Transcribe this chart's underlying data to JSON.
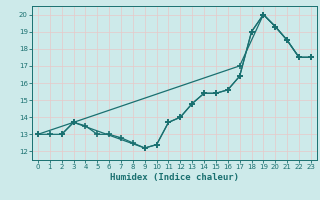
{
  "xlabel": "Humidex (Indice chaleur)",
  "xlim": [
    -0.5,
    23.5
  ],
  "ylim": [
    11.5,
    20.5
  ],
  "xticks": [
    0,
    1,
    2,
    3,
    4,
    5,
    6,
    7,
    8,
    9,
    10,
    11,
    12,
    13,
    14,
    15,
    16,
    17,
    18,
    19,
    20,
    21,
    22,
    23
  ],
  "yticks": [
    12,
    13,
    14,
    15,
    16,
    17,
    18,
    19,
    20
  ],
  "background_color": "#cdeaea",
  "grid_color": "#b0d8d8",
  "line_color": "#1a7070",
  "line1_x": [
    0,
    1,
    2,
    3,
    4,
    5,
    6,
    7,
    8,
    9,
    10,
    11,
    12,
    13,
    14,
    15,
    16,
    17,
    18,
    19,
    20,
    21,
    22,
    23
  ],
  "line1_y": [
    13,
    13,
    13,
    13.7,
    13.5,
    13,
    13,
    12.8,
    12.5,
    12.2,
    12.4,
    13.7,
    14.0,
    14.8,
    15.4,
    15.4,
    15.6,
    16.4,
    19.0,
    20.0,
    19.3,
    18.5,
    17.5,
    17.5
  ],
  "line2_x": [
    0,
    3,
    17,
    19,
    20,
    21,
    22,
    23
  ],
  "line2_y": [
    13,
    13.7,
    17.0,
    20.0,
    19.3,
    18.5,
    17.5,
    17.5
  ],
  "line3_x": [
    2,
    3,
    9,
    10,
    11,
    12,
    13,
    14,
    15,
    16,
    17,
    18,
    19,
    20,
    21,
    22,
    23
  ],
  "line3_y": [
    13,
    13.7,
    12.2,
    12.4,
    13.7,
    14.0,
    14.8,
    15.4,
    15.4,
    15.6,
    16.4,
    19.0,
    20.0,
    19.3,
    18.5,
    17.5,
    17.5
  ]
}
